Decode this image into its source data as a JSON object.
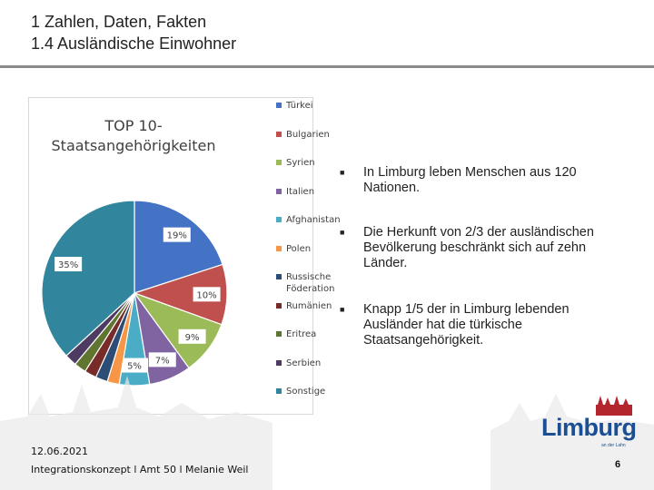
{
  "header": {
    "line1": "1 Zahlen, Daten, Fakten",
    "line2": "1.4 Ausländische Einwohner"
  },
  "chart_data": {
    "type": "pie",
    "title": "TOP 10-\nStaatsangehörigkeiten",
    "legend_position": "right",
    "categories": [
      "Türkei",
      "Bulgarien",
      "Syrien",
      "Italien",
      "Afghanistan",
      "Polen",
      "Russische Föderation",
      "Rumänien",
      "Eritrea",
      "Serbien",
      "Sonstige"
    ],
    "values": [
      19,
      10,
      9,
      7,
      5,
      2,
      2,
      2,
      2,
      2,
      35
    ],
    "data_labels": [
      "19%",
      "10%",
      "9%",
      "7%",
      "5%",
      "",
      "",
      "",
      "",
      "",
      "35%"
    ],
    "colors": [
      "#4472c4",
      "#c0504d",
      "#9bbb59",
      "#8064a2",
      "#4bacc6",
      "#f79646",
      "#2c4d75",
      "#772c2a",
      "#5f7530",
      "#4d3b62",
      "#31859c"
    ]
  },
  "bullets": [
    "In Limburg leben Menschen aus 120 Nationen.",
    "Die Herkunft von 2/3 der ausländischen Bevölkerung beschränkt sich auf zehn Länder.",
    "Knapp 1/5 der in Limburg lebenden Ausländer hat die türkische Staatsangehörigkeit."
  ],
  "bullet_marker": "■",
  "footer": {
    "date": "12.06.2021",
    "credit": "Integrationskonzept l Amt 50 l Melanie Weil"
  },
  "page_number": "6",
  "logo": {
    "wordmark": "Limburg",
    "tagline": "an der Lahn"
  }
}
